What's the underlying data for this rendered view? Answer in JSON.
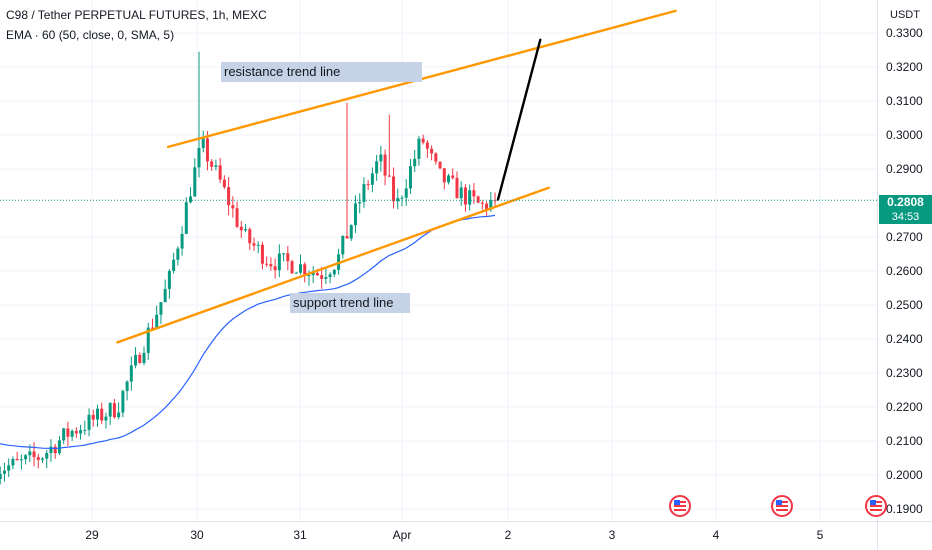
{
  "legend": {
    "symbol_line": "C98 / Tether PERPETUAL FUTURES, 1h, MEXC",
    "indicator_line": "EMA · 60 (50, close, 0, SMA, 5)"
  },
  "price_axis": {
    "unit": "USDT",
    "ticks": [
      "0.3300",
      "0.3200",
      "0.3100",
      "0.3000",
      "0.2900",
      "0.2700",
      "0.2600",
      "0.2500",
      "0.2400",
      "0.2300",
      "0.2200",
      "0.2100",
      "0.2000",
      "0.1900"
    ]
  },
  "time_axis": {
    "ticks": [
      "29",
      "30",
      "31",
      "Apr",
      "2",
      "3",
      "4",
      "5"
    ]
  },
  "current_price": {
    "value": "0.2808",
    "countdown": "34:53",
    "color": "#089981"
  },
  "annotations": {
    "resistance": "resistance trend line",
    "support": "support trend line"
  },
  "colors": {
    "up": "#089981",
    "down": "#f23645",
    "ema": "#2962ff",
    "trend": "#ff9800",
    "projection": "#000000"
  },
  "chart_data": {
    "type": "candlestick",
    "title": "C98 / Tether PERPETUAL FUTURES, 1h, MEXC",
    "ylim": [
      0.1885,
      0.3365
    ],
    "x_ticks": [
      "29",
      "30",
      "31",
      "Apr",
      "2",
      "3",
      "4",
      "5"
    ],
    "close_path": [
      [
        "28 00:00",
        0.2015
      ],
      [
        "28 06:00",
        0.203
      ],
      [
        "28 12:00",
        0.2055
      ],
      [
        "28 18:00",
        0.212
      ],
      [
        "29 00:00",
        0.216
      ],
      [
        "29 06:00",
        0.22
      ],
      [
        "29 12:00",
        0.238
      ],
      [
        "29 18:00",
        0.256
      ],
      [
        "30 00:00",
        0.288
      ],
      [
        "30 02:00",
        0.297
      ],
      [
        "30 06:00",
        0.287
      ],
      [
        "30 12:00",
        0.27
      ],
      [
        "30 18:00",
        0.263
      ],
      [
        "31 00:00",
        0.262
      ],
      [
        "31 06:00",
        0.259
      ],
      [
        "31 10:00",
        0.263
      ],
      [
        "31 16:00",
        0.283
      ],
      [
        "31 20:00",
        0.293
      ],
      [
        "Apr 1 00:00",
        0.279
      ],
      [
        "Apr 1 06:00",
        0.299
      ],
      [
        "Apr 1 10:00",
        0.288
      ],
      [
        "Apr 1 16:00",
        0.282
      ],
      [
        "Apr 1 20:00",
        0.279
      ],
      [
        "Apr 2 00:00",
        0.2808
      ]
    ],
    "series": [
      {
        "name": "EMA · 60",
        "color": "#2962ff"
      }
    ],
    "overlays": [
      {
        "name": "resistance trend line",
        "from": [
          "29 18:00",
          0.2965
        ],
        "to": [
          "3 18:00",
          0.3365
        ],
        "color": "#ff9800"
      },
      {
        "name": "support trend line",
        "from": [
          "29 06:00",
          0.239
        ],
        "to": [
          "2 12:00",
          0.2845
        ],
        "color": "#ff9800"
      },
      {
        "name": "projection",
        "from": [
          "Apr 2 00:00",
          0.281
        ],
        "to": [
          "2 10:00",
          0.328
        ],
        "color": "#000000"
      }
    ],
    "current_price": 0.2808,
    "grid": true
  }
}
